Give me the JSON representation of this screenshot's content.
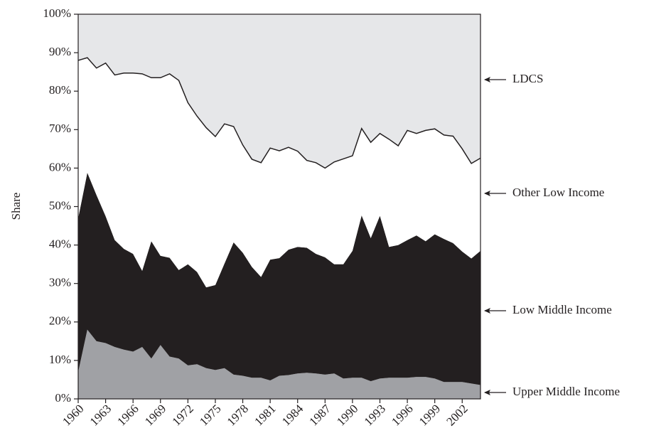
{
  "chart_data": {
    "type": "stacked_area",
    "ylabel": "Share",
    "x": [
      1960,
      1961,
      1962,
      1963,
      1964,
      1965,
      1966,
      1967,
      1968,
      1969,
      1970,
      1971,
      1972,
      1973,
      1974,
      1975,
      1976,
      1977,
      1978,
      1979,
      1980,
      1981,
      1982,
      1983,
      1984,
      1985,
      1986,
      1987,
      1988,
      1989,
      1990,
      1991,
      1992,
      1993,
      1994,
      1995,
      1996,
      1997,
      1998,
      1999,
      2000,
      2001,
      2002,
      2003,
      2004
    ],
    "xlim": [
      1960,
      2004
    ],
    "xticks": [
      1960,
      1963,
      1966,
      1969,
      1972,
      1975,
      1978,
      1981,
      1984,
      1987,
      1990,
      1993,
      1996,
      1999,
      2002
    ],
    "ylim": [
      0,
      100
    ],
    "yticks": [
      {
        "value": 0,
        "label": "0%"
      },
      {
        "value": 10,
        "label": "10%"
      },
      {
        "value": 20,
        "label": "20%"
      },
      {
        "value": 30,
        "label": "30%"
      },
      {
        "value": 40,
        "label": "40%"
      },
      {
        "value": 50,
        "label": "50%"
      },
      {
        "value": 60,
        "label": "60%"
      },
      {
        "value": 70,
        "label": "70%"
      },
      {
        "value": 80,
        "label": "80%"
      },
      {
        "value": 90,
        "label": "90%"
      },
      {
        "value": 100,
        "label": "100%"
      }
    ],
    "series": [
      {
        "name": "Upper Middle Income",
        "color": "#a0a1a5",
        "values": [
          7,
          18,
          15,
          14.5,
          13.5,
          12.8,
          12.3,
          13.5,
          10.5,
          14,
          11,
          10.5,
          8.7,
          9,
          8,
          7.5,
          8,
          6.3,
          6,
          5.5,
          5.5,
          4.8,
          6,
          6.2,
          6.6,
          6.8,
          6.6,
          6.3,
          6.6,
          5.3,
          5.5,
          5.5,
          4.6,
          5.3,
          5.5,
          5.5,
          5.5,
          5.7,
          5.7,
          5.3,
          4.4,
          4.4,
          4.4,
          4,
          3.6
        ]
      },
      {
        "name": "Low Middle Income",
        "color": "#231f20",
        "values": [
          40,
          40.8,
          38,
          33,
          27.8,
          26.2,
          25.4,
          19.8,
          30.5,
          23.2,
          25.7,
          23,
          26.3,
          24,
          21,
          22.1,
          27.2,
          34.4,
          32,
          28.8,
          26.2,
          31.4,
          30.6,
          32.6,
          32.9,
          32.5,
          31.1,
          30.5,
          28.4,
          29.7,
          33,
          42.2,
          37.2,
          42.3,
          34,
          34.5,
          35.8,
          36.8,
          35.3,
          37.5,
          37.2,
          36.1,
          33.9,
          32.5,
          34.9
        ]
      },
      {
        "name": "Other Low Income",
        "color": "#ffffff",
        "values": [
          41,
          29.9,
          33,
          39.8,
          42.9,
          45.7,
          47,
          51.2,
          42.5,
          46.3,
          47.8,
          49.3,
          42,
          40.5,
          41.5,
          38.6,
          36.3,
          30.1,
          28,
          28,
          29.7,
          29,
          27.9,
          26.6,
          24.9,
          22.7,
          23.7,
          23.2,
          26.6,
          27.4,
          24.7,
          22.6,
          24.9,
          21.4,
          28,
          25.8,
          28.5,
          26.5,
          28.8,
          27.4,
          27,
          27.8,
          26.7,
          24.7,
          24.1
        ]
      },
      {
        "name": "LDCS",
        "color": "#e6e7e9",
        "values": [
          12,
          11.3,
          14,
          12.7,
          15.8,
          15.3,
          15.3,
          15.5,
          16.5,
          16.5,
          15.5,
          17.2,
          23,
          26.5,
          29.5,
          31.8,
          28.5,
          29.2,
          34,
          37.7,
          38.6,
          34.8,
          35.5,
          34.6,
          35.6,
          38,
          38.6,
          40,
          38.4,
          37.6,
          36.8,
          29.7,
          33.3,
          31,
          32.5,
          34.2,
          30.2,
          31,
          30.2,
          29.8,
          31.4,
          31.7,
          35,
          38.8,
          37.4
        ]
      }
    ]
  }
}
